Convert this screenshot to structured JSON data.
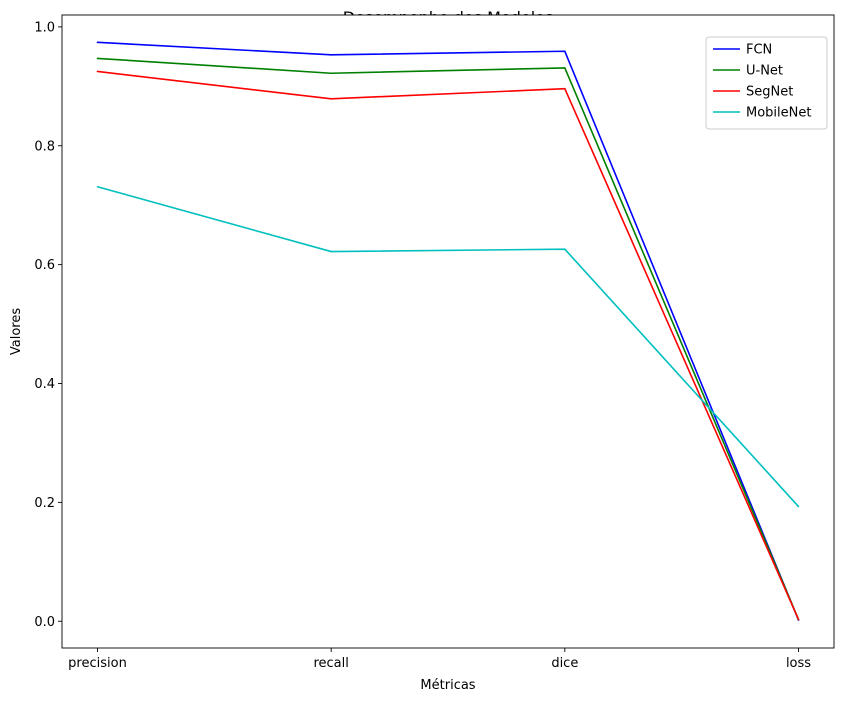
{
  "chart_data": {
    "type": "line",
    "title": "Desempenho dos Modelos",
    "xlabel": "Métricas",
    "ylabel": "Valores",
    "categories": [
      "precision",
      "recall",
      "dice",
      "loss"
    ],
    "ylim": [
      -0.045,
      1.02
    ],
    "yticks": [
      0.0,
      0.2,
      0.4,
      0.6,
      0.8,
      1.0
    ],
    "ytick_labels": [
      "0.0",
      "0.2",
      "0.4",
      "0.6",
      "0.8",
      "1.0"
    ],
    "grid": false,
    "legend_position": "top-right",
    "series": [
      {
        "name": "FCN",
        "color": "#0000ff",
        "values": [
          0.974,
          0.953,
          0.959,
          0.002
        ]
      },
      {
        "name": "U-Net",
        "color": "#008000",
        "values": [
          0.947,
          0.922,
          0.931,
          0.003
        ]
      },
      {
        "name": "SegNet",
        "color": "#ff0000",
        "values": [
          0.925,
          0.879,
          0.896,
          0.003
        ]
      },
      {
        "name": "MobileNet",
        "color": "#00bfbf",
        "values": [
          0.731,
          0.622,
          0.626,
          0.193
        ]
      }
    ]
  }
}
